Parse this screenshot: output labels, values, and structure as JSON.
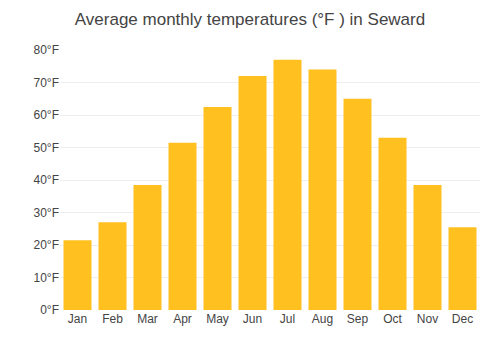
{
  "chart_data": {
    "type": "bar",
    "title": "Average monthly temperatures (°F ) in Seward",
    "categories": [
      "Jan",
      "Feb",
      "Mar",
      "Apr",
      "May",
      "Jun",
      "Jul",
      "Aug",
      "Sep",
      "Oct",
      "Nov",
      "Dec"
    ],
    "values": [
      21.5,
      27,
      38.5,
      51.5,
      62.5,
      72,
      77,
      74,
      65,
      53,
      38.5,
      25.5
    ],
    "color": "#FFC020",
    "ylim": [
      0,
      80
    ],
    "yticks": [
      {
        "value": 0,
        "label": "0°F"
      },
      {
        "value": 10,
        "label": "10°F"
      },
      {
        "value": 20,
        "label": "20°F"
      },
      {
        "value": 30,
        "label": "30°F"
      },
      {
        "value": 40,
        "label": "40°F"
      },
      {
        "value": 50,
        "label": "50°F"
      },
      {
        "value": 60,
        "label": "60°F"
      },
      {
        "value": 70,
        "label": "70°F"
      },
      {
        "value": 80,
        "label": "80°F"
      }
    ],
    "grid": true
  }
}
